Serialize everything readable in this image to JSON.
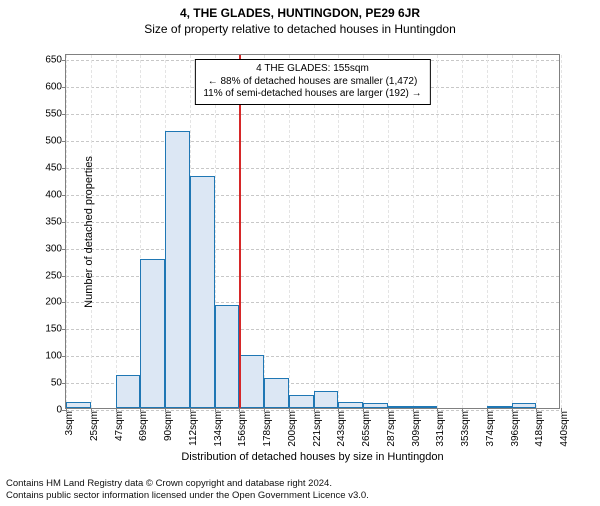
{
  "super_title": "4, THE GLADES, HUNTINGDON, PE29 6JR",
  "sub_title": "Size of property relative to detached houses in Huntingdon",
  "footer_line1": "Contains HM Land Registry data © Crown copyright and database right 2024.",
  "footer_line2": "Contains public sector information licensed under the Open Government Licence v3.0.",
  "chart": {
    "type": "histogram",
    "ylabel": "Number of detached properties",
    "xlabel": "Distribution of detached houses by size in Huntingdon",
    "ylim": [
      0,
      660
    ],
    "yticks": [
      0,
      50,
      100,
      150,
      200,
      250,
      300,
      350,
      400,
      450,
      500,
      550,
      600,
      650
    ],
    "x_tick_labels": [
      "3sqm",
      "25sqm",
      "47sqm",
      "69sqm",
      "90sqm",
      "112sqm",
      "134sqm",
      "156sqm",
      "178sqm",
      "200sqm",
      "221sqm",
      "243sqm",
      "265sqm",
      "287sqm",
      "309sqm",
      "331sqm",
      "353sqm",
      "374sqm",
      "396sqm",
      "418sqm",
      "440sqm"
    ],
    "bar_values": [
      12,
      0,
      62,
      277,
      515,
      432,
      192,
      99,
      56,
      25,
      32,
      12,
      10,
      4,
      4,
      0,
      0,
      2,
      10,
      0
    ],
    "bar_fill": "#dce7f4",
    "bar_stroke": "#1f77b4",
    "grid_color": "#c8c8c8",
    "background_color": "#ffffff",
    "reference_line_bin_index": 7,
    "reference_line_color": "#d62728",
    "caption_lines": [
      "4 THE GLADES: 155sqm",
      "← 88% of detached houses are smaller (1,472)",
      "11% of semi-detached houses are larger (192) →"
    ]
  }
}
